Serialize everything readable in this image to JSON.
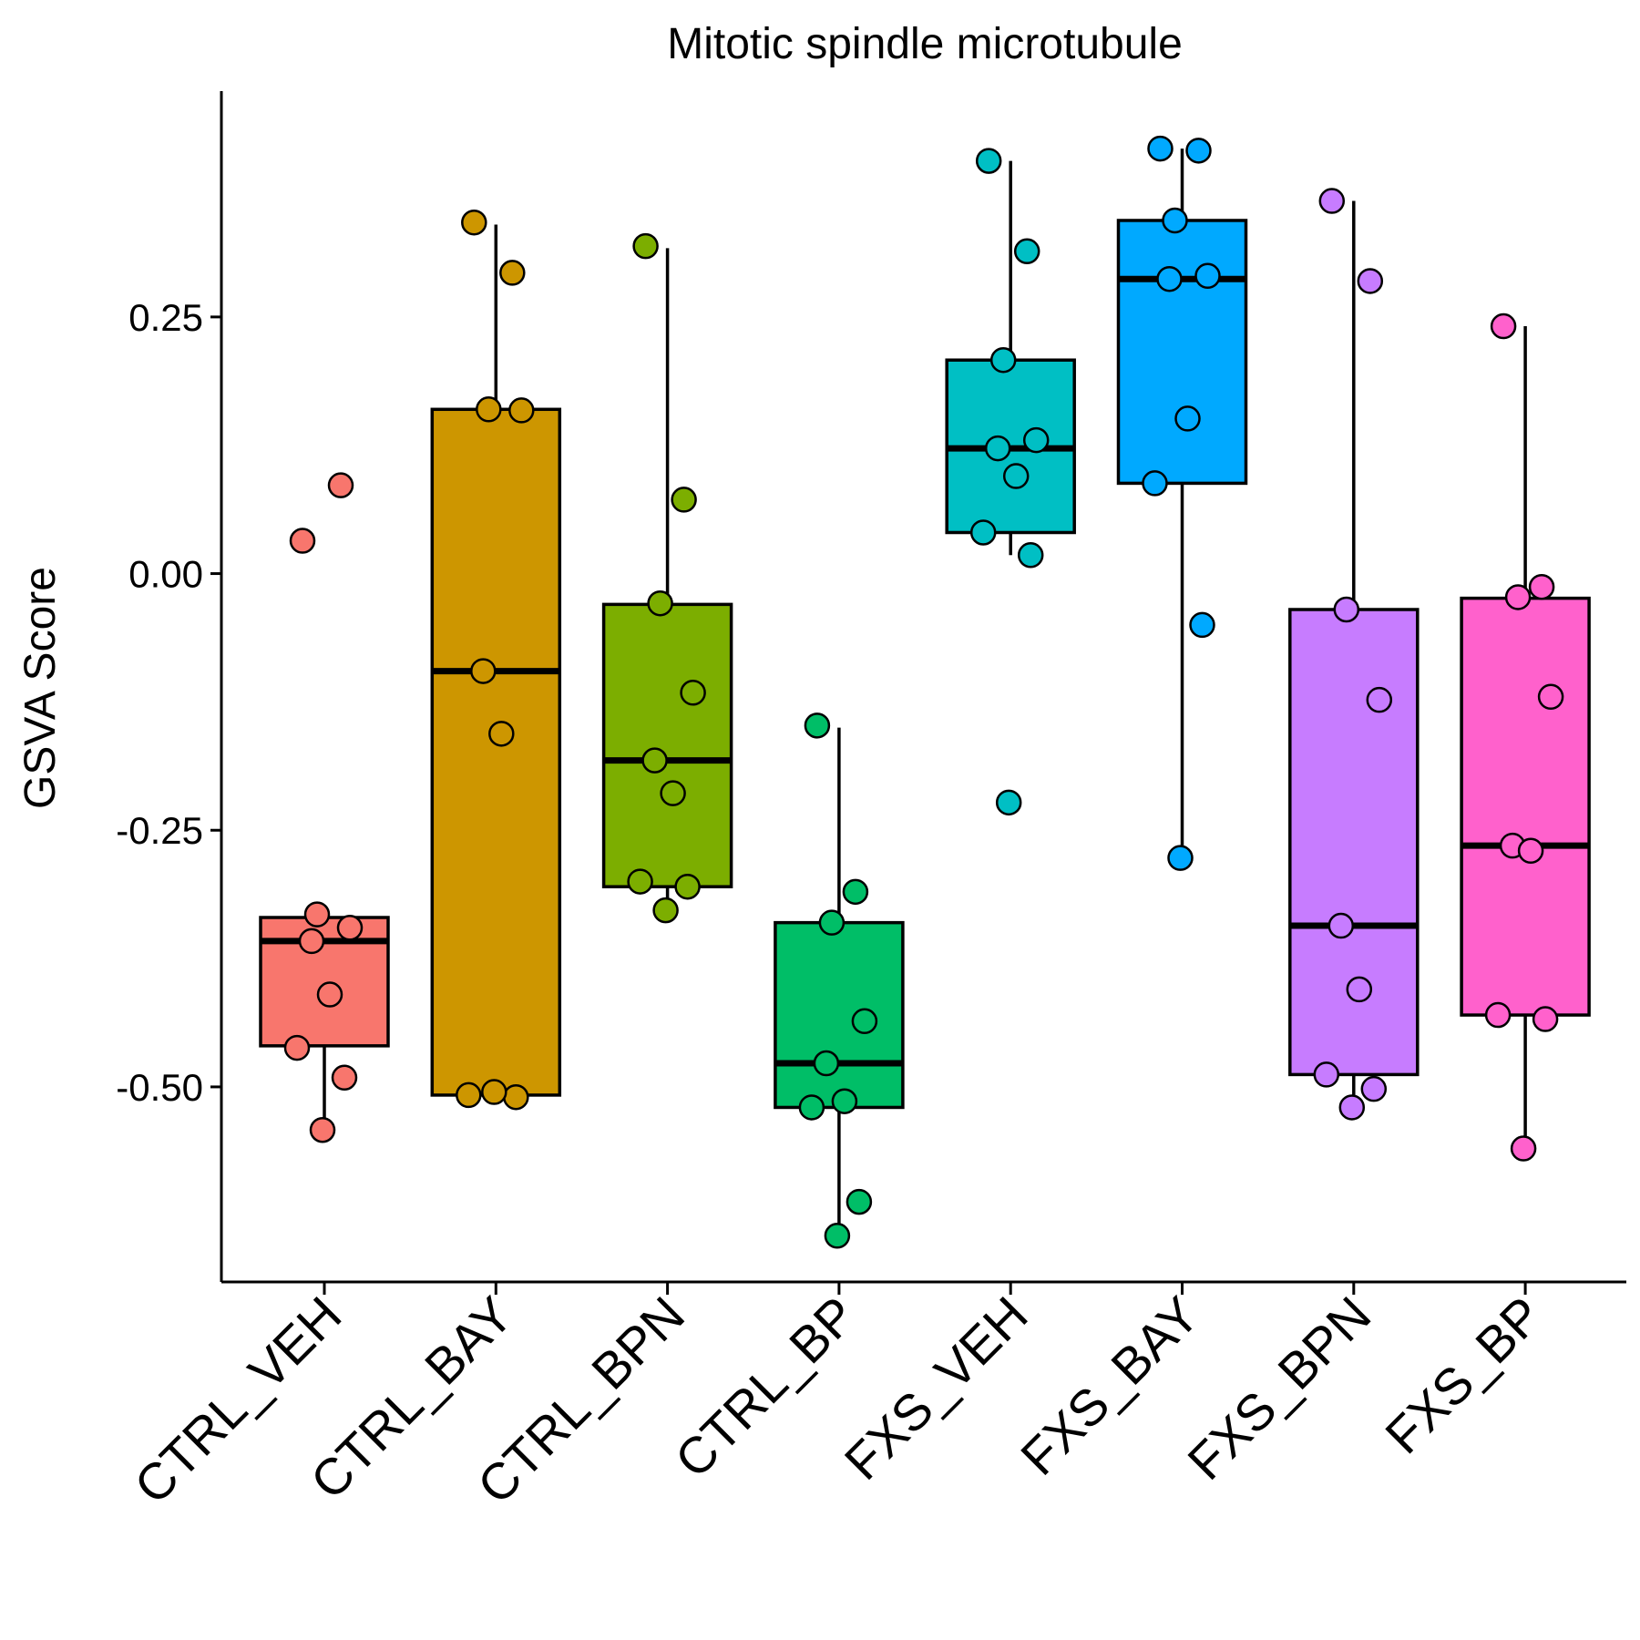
{
  "chart_data": {
    "type": "box",
    "title": "Mitotic spindle microtubule",
    "xlabel": "",
    "ylabel": "GSVA Score",
    "ylim": [
      -0.69,
      0.47
    ],
    "yticks": [
      0.25,
      0.0,
      -0.25,
      -0.5
    ],
    "ytick_labels": [
      "0.25",
      "0.00",
      "-0.25",
      "-0.50"
    ],
    "grid": false,
    "legend": "none",
    "categories": [
      "CTRL_VEH",
      "CTRL_BAY",
      "CTRL_BPN",
      "CTRL_BP",
      "FXS_VEH",
      "FXS_BAY",
      "FXS_BPN",
      "FXS_BP"
    ],
    "colors": [
      "#F8766D",
      "#CD9600",
      "#7CAE00",
      "#00BE67",
      "#00BFC4",
      "#00A9FF",
      "#C77CFF",
      "#FF61CC"
    ],
    "series": [
      {
        "box": {
          "whisker_low": -0.54,
          "q1": -0.46,
          "median": -0.358,
          "q3": -0.335,
          "whisker_high": -0.335
        },
        "points": [
          0.032,
          0.086,
          -0.332,
          -0.345,
          -0.358,
          -0.41,
          -0.462,
          -0.491,
          -0.542
        ]
      },
      {
        "box": {
          "whisker_low": -0.508,
          "q1": -0.508,
          "median": -0.095,
          "q3": 0.16,
          "whisker_high": 0.34
        },
        "points": [
          0.342,
          0.293,
          0.16,
          0.159,
          -0.095,
          -0.156,
          -0.508,
          -0.51,
          -0.505
        ]
      },
      {
        "box": {
          "whisker_low": -0.33,
          "q1": -0.305,
          "median": -0.182,
          "q3": -0.03,
          "whisker_high": 0.317
        },
        "points": [
          0.319,
          0.072,
          -0.029,
          -0.116,
          -0.182,
          -0.214,
          -0.3,
          -0.305,
          -0.328
        ]
      },
      {
        "box": {
          "whisker_low": -0.645,
          "q1": -0.52,
          "median": -0.477,
          "q3": -0.34,
          "whisker_high": -0.15
        },
        "points": [
          -0.148,
          -0.31,
          -0.34,
          -0.436,
          -0.477,
          -0.514,
          -0.52,
          -0.612,
          -0.645
        ]
      },
      {
        "box": {
          "whisker_low": 0.018,
          "q1": 0.04,
          "median": 0.122,
          "q3": 0.208,
          "whisker_high": 0.402
        },
        "points": [
          0.402,
          0.314,
          0.208,
          0.13,
          0.122,
          0.095,
          0.04,
          0.018,
          -0.223
        ]
      },
      {
        "box": {
          "whisker_low": -0.277,
          "q1": 0.088,
          "median": 0.287,
          "q3": 0.344,
          "whisker_high": 0.414
        },
        "points": [
          0.414,
          0.412,
          0.344,
          0.29,
          0.287,
          0.151,
          0.088,
          -0.05,
          -0.277
        ]
      },
      {
        "box": {
          "whisker_low": -0.522,
          "q1": -0.488,
          "median": -0.343,
          "q3": -0.035,
          "whisker_high": 0.363
        },
        "points": [
          0.363,
          0.285,
          -0.035,
          -0.123,
          -0.343,
          -0.405,
          -0.488,
          -0.502,
          -0.52
        ]
      },
      {
        "box": {
          "whisker_low": -0.558,
          "q1": -0.43,
          "median": -0.265,
          "q3": -0.024,
          "whisker_high": 0.241
        },
        "points": [
          0.241,
          -0.013,
          -0.023,
          -0.12,
          -0.265,
          -0.27,
          -0.43,
          -0.434,
          -0.56
        ]
      }
    ]
  }
}
